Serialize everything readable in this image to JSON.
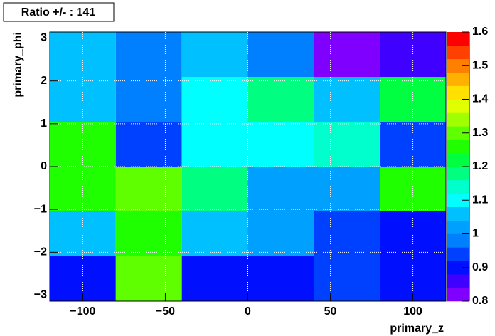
{
  "chart_data": {
    "type": "heatmap",
    "title": "Ratio +/- : 141",
    "x_label": "primary_z",
    "y_label": "primary_phi",
    "x_bins": [
      -120,
      -80,
      -40,
      0,
      40,
      80,
      120
    ],
    "y_bins": [
      -3.1416,
      -2.0944,
      -1.0472,
      0,
      1.0472,
      2.0944,
      3.1416
    ],
    "z": [
      [
        0.9,
        1.3,
        0.9,
        0.9,
        0.94,
        0.9
      ],
      [
        1.06,
        1.26,
        1.06,
        1.02,
        0.94,
        0.9
      ],
      [
        1.26,
        1.3,
        1.18,
        1.02,
        1.02,
        1.26
      ],
      [
        1.26,
        0.94,
        1.1,
        1.1,
        1.14,
        0.94
      ],
      [
        1.06,
        0.98,
        1.1,
        1.18,
        1.06,
        1.22
      ],
      [
        1.06,
        0.98,
        1.06,
        0.98,
        0.82,
        0.86
      ]
    ],
    "xlim": [
      -120,
      120
    ],
    "ylim": [
      -3.1416,
      3.1416
    ],
    "zlim": [
      0.8,
      1.6
    ],
    "xticks": [
      {
        "value": -100,
        "label": "−100"
      },
      {
        "value": -50,
        "label": "−50"
      },
      0,
      50,
      100
    ],
    "yticks": [
      {
        "value": -3,
        "label": "−3"
      },
      {
        "value": -2,
        "label": "−2"
      },
      {
        "value": -1,
        "label": "−1"
      },
      0,
      1,
      2,
      3
    ],
    "zticks": [
      0.8,
      0.9,
      1,
      1.1,
      1.2,
      1.3,
      1.4,
      1.5,
      1.6
    ],
    "grid": true,
    "palette": [
      "#8000ff",
      "#4000ff",
      "#0010ff",
      "#0040ff",
      "#0080ff",
      "#00a0ff",
      "#00c0ff",
      "#00ffff",
      "#00ffcc",
      "#00ff80",
      "#00ff40",
      "#20ff00",
      "#60ff00",
      "#a0ff00",
      "#e0ff00",
      "#ffe000",
      "#ffb000",
      "#ff8000",
      "#ff4000",
      "#ff0000"
    ]
  }
}
